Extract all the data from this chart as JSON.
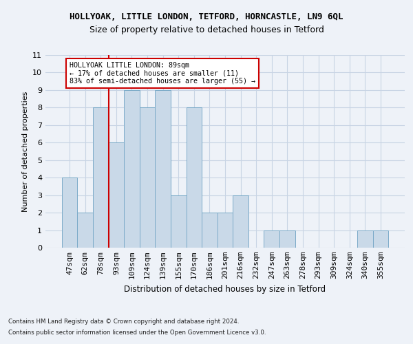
{
  "title1": "HOLLYOAK, LITTLE LONDON, TETFORD, HORNCASTLE, LN9 6QL",
  "title2": "Size of property relative to detached houses in Tetford",
  "xlabel": "Distribution of detached houses by size in Tetford",
  "ylabel": "Number of detached properties",
  "categories": [
    "47sqm",
    "62sqm",
    "78sqm",
    "93sqm",
    "109sqm",
    "124sqm",
    "139sqm",
    "155sqm",
    "170sqm",
    "186sqm",
    "201sqm",
    "216sqm",
    "232sqm",
    "247sqm",
    "263sqm",
    "278sqm",
    "293sqm",
    "309sqm",
    "324sqm",
    "340sqm",
    "355sqm"
  ],
  "values": [
    4,
    2,
    8,
    6,
    9,
    8,
    9,
    3,
    8,
    2,
    2,
    3,
    0,
    1,
    1,
    0,
    0,
    0,
    0,
    1,
    1
  ],
  "bar_color": "#c9d9e8",
  "bar_edge_color": "#7aaac8",
  "grid_color": "#c8d4e4",
  "background_color": "#eef2f8",
  "red_line_x": 2.5,
  "annotation_text": "HOLLYOAK LITTLE LONDON: 89sqm\n← 17% of detached houses are smaller (11)\n83% of semi-detached houses are larger (55) →",
  "annotation_box_color": "#ffffff",
  "annotation_border_color": "#cc0000",
  "footer1": "Contains HM Land Registry data © Crown copyright and database right 2024.",
  "footer2": "Contains public sector information licensed under the Open Government Licence v3.0.",
  "ylim": [
    0,
    11
  ],
  "yticks": [
    0,
    1,
    2,
    3,
    4,
    5,
    6,
    7,
    8,
    9,
    10,
    11
  ]
}
